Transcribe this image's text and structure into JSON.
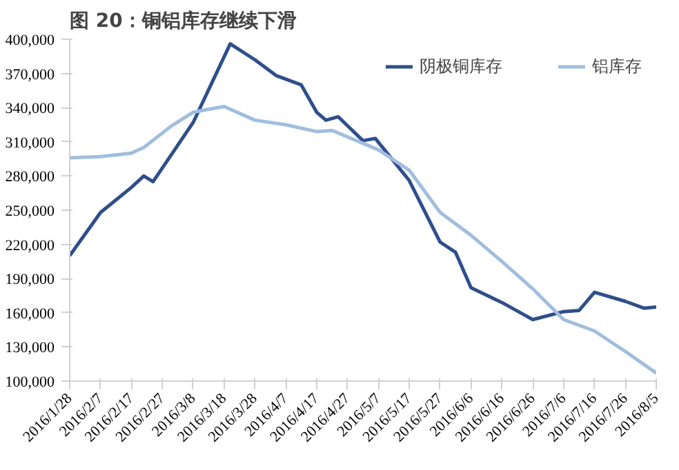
{
  "chart_data": {
    "type": "line",
    "title": "图 20：铜铝库存继续下滑",
    "legend": "top right",
    "grid": false,
    "marker": "none",
    "line_style": "solid",
    "ylim": [
      100000,
      400000
    ],
    "yticks": [
      {
        "value": 100000,
        "label": "100,000"
      },
      {
        "value": 130000,
        "label": "130,000"
      },
      {
        "value": 160000,
        "label": "160,000"
      },
      {
        "value": 190000,
        "label": "190,000"
      },
      {
        "value": 220000,
        "label": "220,000"
      },
      {
        "value": 250000,
        "label": "250,000"
      },
      {
        "value": 280000,
        "label": "280,000"
      },
      {
        "value": 310000,
        "label": "310,000"
      },
      {
        "value": 340000,
        "label": "340,000"
      },
      {
        "value": 370000,
        "label": "370,000"
      },
      {
        "value": 400000,
        "label": "400,000"
      }
    ],
    "xlim": [
      "2016-01-28",
      "2016-08-05"
    ],
    "xticks": [
      {
        "value": "2016-01-28",
        "label": "2016/1/28"
      },
      {
        "value": "2016-02-07",
        "label": "2016/2/7"
      },
      {
        "value": "2016-02-17",
        "label": "2016/2/17"
      },
      {
        "value": "2016-02-27",
        "label": "2016/2/27"
      },
      {
        "value": "2016-03-08",
        "label": "2016/3/8"
      },
      {
        "value": "2016-03-18",
        "label": "2016/3/18"
      },
      {
        "value": "2016-03-28",
        "label": "2016/3/28"
      },
      {
        "value": "2016-04-07",
        "label": "2016/4/7"
      },
      {
        "value": "2016-04-17",
        "label": "2016/4/17"
      },
      {
        "value": "2016-04-27",
        "label": "2016/4/27"
      },
      {
        "value": "2016-05-07",
        "label": "2016/5/7"
      },
      {
        "value": "2016-05-17",
        "label": "2016/5/17"
      },
      {
        "value": "2016-05-27",
        "label": "2016/5/27"
      },
      {
        "value": "2016-06-06",
        "label": "2016/6/6"
      },
      {
        "value": "2016-06-16",
        "label": "2016/6/16"
      },
      {
        "value": "2016-06-26",
        "label": "2016/6/26"
      },
      {
        "value": "2016-07-06",
        "label": "2016/7/6"
      },
      {
        "value": "2016-07-16",
        "label": "2016/7/16"
      },
      {
        "value": "2016-07-26",
        "label": "2016/7/26"
      },
      {
        "value": "2016-08-05",
        "label": "2016/8/5"
      }
    ],
    "series": [
      {
        "name": "阴极铜库存",
        "color": "#2f4e8c",
        "x": [
          "2016-01-28",
          "2016-02-07",
          "2016-02-17",
          "2016-02-21",
          "2016-02-24",
          "2016-03-08",
          "2016-03-20",
          "2016-03-28",
          "2016-04-04",
          "2016-04-12",
          "2016-04-17",
          "2016-04-20",
          "2016-04-24",
          "2016-05-02",
          "2016-05-06",
          "2016-05-17",
          "2016-05-27",
          "2016-06-01",
          "2016-06-06",
          "2016-06-16",
          "2016-06-26",
          "2016-07-06",
          "2016-07-11",
          "2016-07-16",
          "2016-07-26",
          "2016-08-01",
          "2016-08-05"
        ],
        "values": [
          210000,
          248000,
          270000,
          280000,
          275000,
          327000,
          396000,
          382000,
          368000,
          360000,
          336000,
          329000,
          332000,
          311000,
          313000,
          276000,
          222000,
          213000,
          182000,
          169000,
          154000,
          161000,
          162000,
          178000,
          170000,
          164000,
          165000
        ]
      },
      {
        "name": "铝库存",
        "color": "#a0bedd",
        "x": [
          "2016-01-28",
          "2016-02-07",
          "2016-02-17",
          "2016-02-21",
          "2016-03-01",
          "2016-03-08",
          "2016-03-18",
          "2016-03-28",
          "2016-04-07",
          "2016-04-17",
          "2016-04-22",
          "2016-05-07",
          "2016-05-17",
          "2016-05-27",
          "2016-06-06",
          "2016-06-16",
          "2016-06-26",
          "2016-07-06",
          "2016-07-16",
          "2016-07-26",
          "2016-08-05"
        ],
        "values": [
          296000,
          297000,
          300000,
          305000,
          324000,
          336000,
          341000,
          329000,
          325000,
          319000,
          320000,
          303000,
          285000,
          248000,
          228000,
          205000,
          181000,
          154000,
          144000,
          126000,
          107000
        ]
      }
    ]
  }
}
